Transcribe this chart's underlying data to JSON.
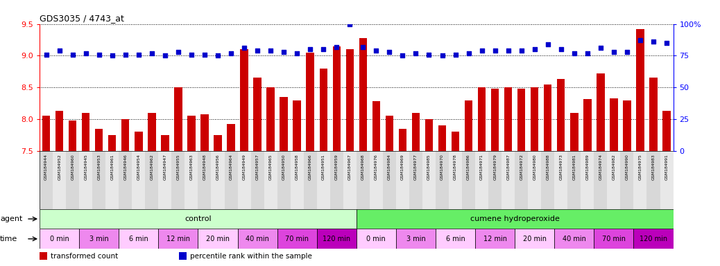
{
  "title": "GDS3035 / 4743_at",
  "samples": [
    "GSM184944",
    "GSM184952",
    "GSM184960",
    "GSM184945",
    "GSM184953",
    "GSM184961",
    "GSM184946",
    "GSM184954",
    "GSM184962",
    "GSM184947",
    "GSM184955",
    "GSM184963",
    "GSM184948",
    "GSM184956",
    "GSM184964",
    "GSM184949",
    "GSM184957",
    "GSM184965",
    "GSM184950",
    "GSM184958",
    "GSM184966",
    "GSM184951",
    "GSM184959",
    "GSM184967",
    "GSM184968",
    "GSM184976",
    "GSM184984",
    "GSM184969",
    "GSM184977",
    "GSM184985",
    "GSM184970",
    "GSM184978",
    "GSM184986",
    "GSM184971",
    "GSM184979",
    "GSM184987",
    "GSM184972",
    "GSM184980",
    "GSM184988",
    "GSM184973",
    "GSM184981",
    "GSM184989",
    "GSM184974",
    "GSM184982",
    "GSM184990",
    "GSM184975",
    "GSM184983",
    "GSM184991"
  ],
  "bar_values": [
    8.05,
    8.13,
    7.98,
    8.1,
    7.85,
    7.75,
    8.0,
    7.8,
    8.1,
    7.75,
    8.5,
    8.05,
    8.08,
    7.75,
    7.92,
    9.1,
    8.65,
    8.5,
    8.35,
    8.3,
    9.05,
    8.8,
    9.15,
    9.1,
    9.28,
    8.28,
    8.05,
    7.85,
    8.1,
    8.0,
    7.9,
    7.8,
    8.3,
    8.5,
    8.48,
    8.5,
    8.48,
    8.5,
    8.55,
    8.63,
    8.1,
    8.32,
    8.72,
    8.33,
    8.3,
    9.42,
    8.65,
    8.13
  ],
  "dot_values": [
    76,
    79,
    76,
    77,
    76,
    75,
    76,
    76,
    77,
    75,
    78,
    76,
    76,
    75,
    77,
    81,
    79,
    79,
    78,
    77,
    80,
    80,
    82,
    100,
    82,
    79,
    78,
    75,
    77,
    76,
    75,
    76,
    77,
    79,
    79,
    79,
    79,
    80,
    84,
    80,
    77,
    77,
    81,
    78,
    78,
    87,
    86,
    85
  ],
  "ylim_left": [
    7.5,
    9.5
  ],
  "ylim_right": [
    0,
    100
  ],
  "yticks_left": [
    7.5,
    8.0,
    8.5,
    9.0,
    9.5
  ],
  "yticks_right": [
    0,
    25,
    50,
    75,
    100
  ],
  "bar_color": "#cc0000",
  "dot_color": "#0000cc",
  "agent_control_label": "control",
  "agent_cumene_label": "cumene hydroperoxide",
  "agent_control_color": "#ccffcc",
  "agent_cumene_color": "#66ee66",
  "time_labels": [
    "0 min",
    "3 min",
    "6 min",
    "12 min",
    "20 min",
    "40 min",
    "70 min",
    "120 min"
  ],
  "time_colors": [
    "#ffccff",
    "#ee88ee",
    "#ffccff",
    "#ee88ee",
    "#ffccff",
    "#ee88ee",
    "#dd44dd",
    "#bb00bb"
  ],
  "n_control": 24,
  "n_cumene": 24,
  "samples_per_time": 3,
  "n_times": 8,
  "legend_transformed": "transformed count",
  "legend_percentile": "percentile rank within the sample",
  "agent_row_label": "agent",
  "time_row_label": "time"
}
